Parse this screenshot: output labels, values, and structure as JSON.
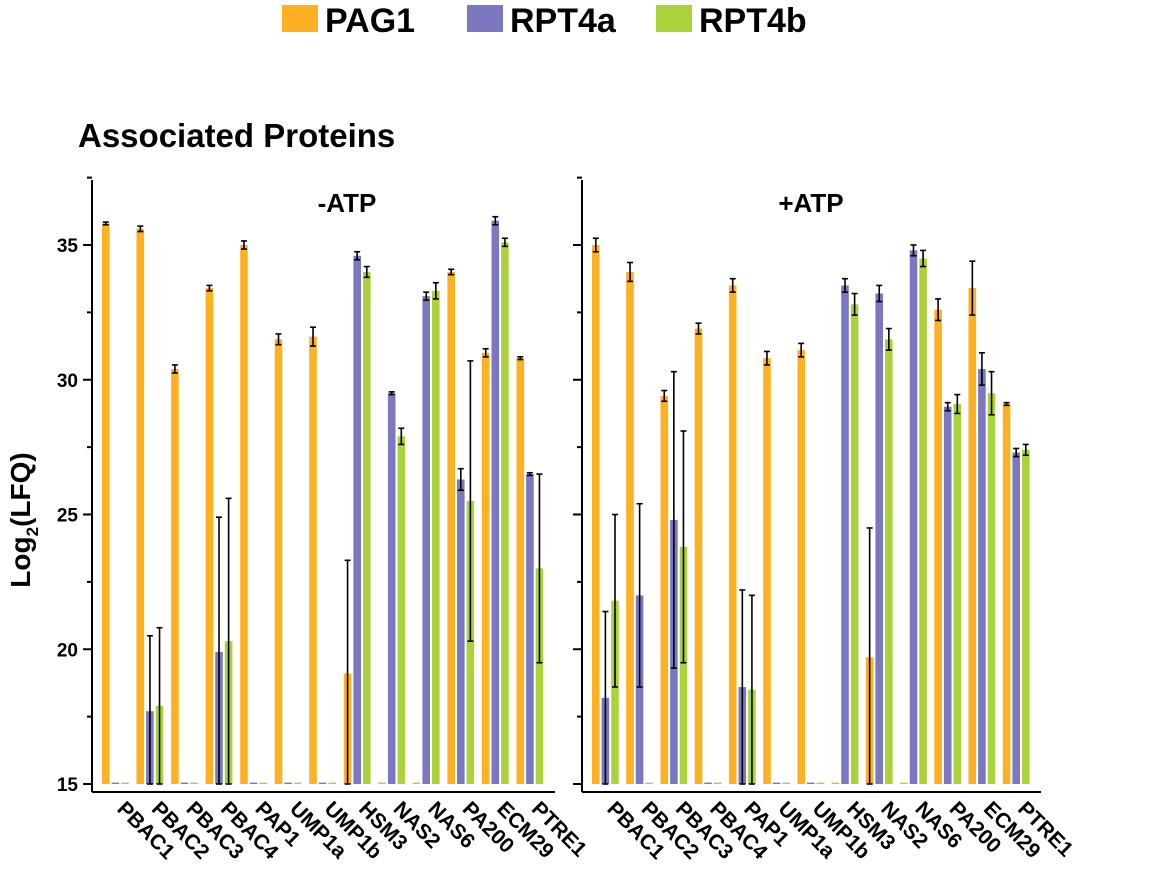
{
  "chart_data": {
    "type": "bar",
    "title": "Associated Proteins",
    "ylabel": "Log",
    "ylabel_sub": "2",
    "ylabel_suffix": "(LFQ)",
    "ylim": [
      15,
      37.5
    ],
    "yticks": [
      15,
      20,
      25,
      30,
      35
    ],
    "legend": {
      "position": "top-center"
    },
    "colors": {
      "PAG1": "#FDB022",
      "RPT4a": "#7B78C1",
      "RPT4b": "#ABD23B"
    },
    "series_names": [
      "PAG1",
      "RPT4a",
      "RPT4b"
    ],
    "panels": [
      {
        "title": "-ATP",
        "categories": [
          "PBAC1",
          "PBAC2",
          "PBAC3",
          "PBAC4",
          "PAP1",
          "UMP1a",
          "UMP1b",
          "HSM3",
          "NAS2",
          "NAS6",
          "PA200",
          "ECM29",
          "PTRE1"
        ],
        "series": [
          {
            "name": "PAG1",
            "values": [
              35.8,
              35.6,
              30.4,
              33.4,
              35.0,
              31.5,
              31.6,
              19.1,
              15.0,
              15.0,
              34.0,
              31.0,
              30.8
            ],
            "errors": [
              0.05,
              0.1,
              0.15,
              0.1,
              0.15,
              0.2,
              0.35,
              4.2,
              0,
              0,
              0.1,
              0.15,
              0.05
            ]
          },
          {
            "name": "RPT4a",
            "values": [
              15.0,
              17.7,
              15.0,
              19.9,
              15.0,
              15.0,
              15.0,
              34.6,
              29.5,
              33.1,
              26.3,
              35.9,
              26.5
            ],
            "errors": [
              0,
              2.8,
              0,
              5.0,
              0,
              0,
              0,
              0.15,
              0.05,
              0.15,
              0.4,
              0.15,
              0.05
            ]
          },
          {
            "name": "RPT4b",
            "values": [
              15.0,
              17.9,
              15.0,
              20.3,
              15.0,
              15.0,
              15.0,
              34.0,
              27.9,
              33.3,
              25.5,
              35.1,
              23.0
            ],
            "errors": [
              0,
              2.9,
              0,
              5.3,
              0,
              0,
              0,
              0.2,
              0.3,
              0.3,
              5.2,
              0.15,
              3.5
            ]
          }
        ]
      },
      {
        "title": "+ATP",
        "categories": [
          "PBAC1",
          "PBAC2",
          "PBAC3",
          "PBAC4",
          "PAP1",
          "UMP1a",
          "UMP1b",
          "HSM3",
          "NAS2",
          "NAS6",
          "PA200",
          "ECM29",
          "PTRE1"
        ],
        "series": [
          {
            "name": "PAG1",
            "values": [
              35.0,
              34.0,
              29.4,
              31.9,
              33.5,
              30.8,
              31.1,
              15.0,
              19.7,
              15.0,
              32.6,
              33.4,
              29.1
            ],
            "errors": [
              0.25,
              0.35,
              0.2,
              0.2,
              0.25,
              0.25,
              0.25,
              0,
              4.8,
              0,
              0.4,
              1.0,
              0.05
            ]
          },
          {
            "name": "RPT4a",
            "values": [
              18.2,
              22.0,
              24.8,
              15.0,
              18.6,
              15.0,
              15.0,
              33.5,
              33.2,
              34.8,
              29.0,
              30.4,
              27.3
            ],
            "errors": [
              3.2,
              3.4,
              5.5,
              0,
              3.6,
              0,
              0,
              0.25,
              0.3,
              0.2,
              0.15,
              0.6,
              0.15
            ]
          },
          {
            "name": "RPT4b",
            "values": [
              21.8,
              15.0,
              23.8,
              15.0,
              18.5,
              15.0,
              15.0,
              32.8,
              31.5,
              34.5,
              29.1,
              29.5,
              27.4
            ],
            "errors": [
              3.2,
              0,
              4.3,
              0,
              3.5,
              0,
              0,
              0.4,
              0.4,
              0.3,
              0.35,
              0.8,
              0.2
            ]
          }
        ]
      }
    ]
  }
}
